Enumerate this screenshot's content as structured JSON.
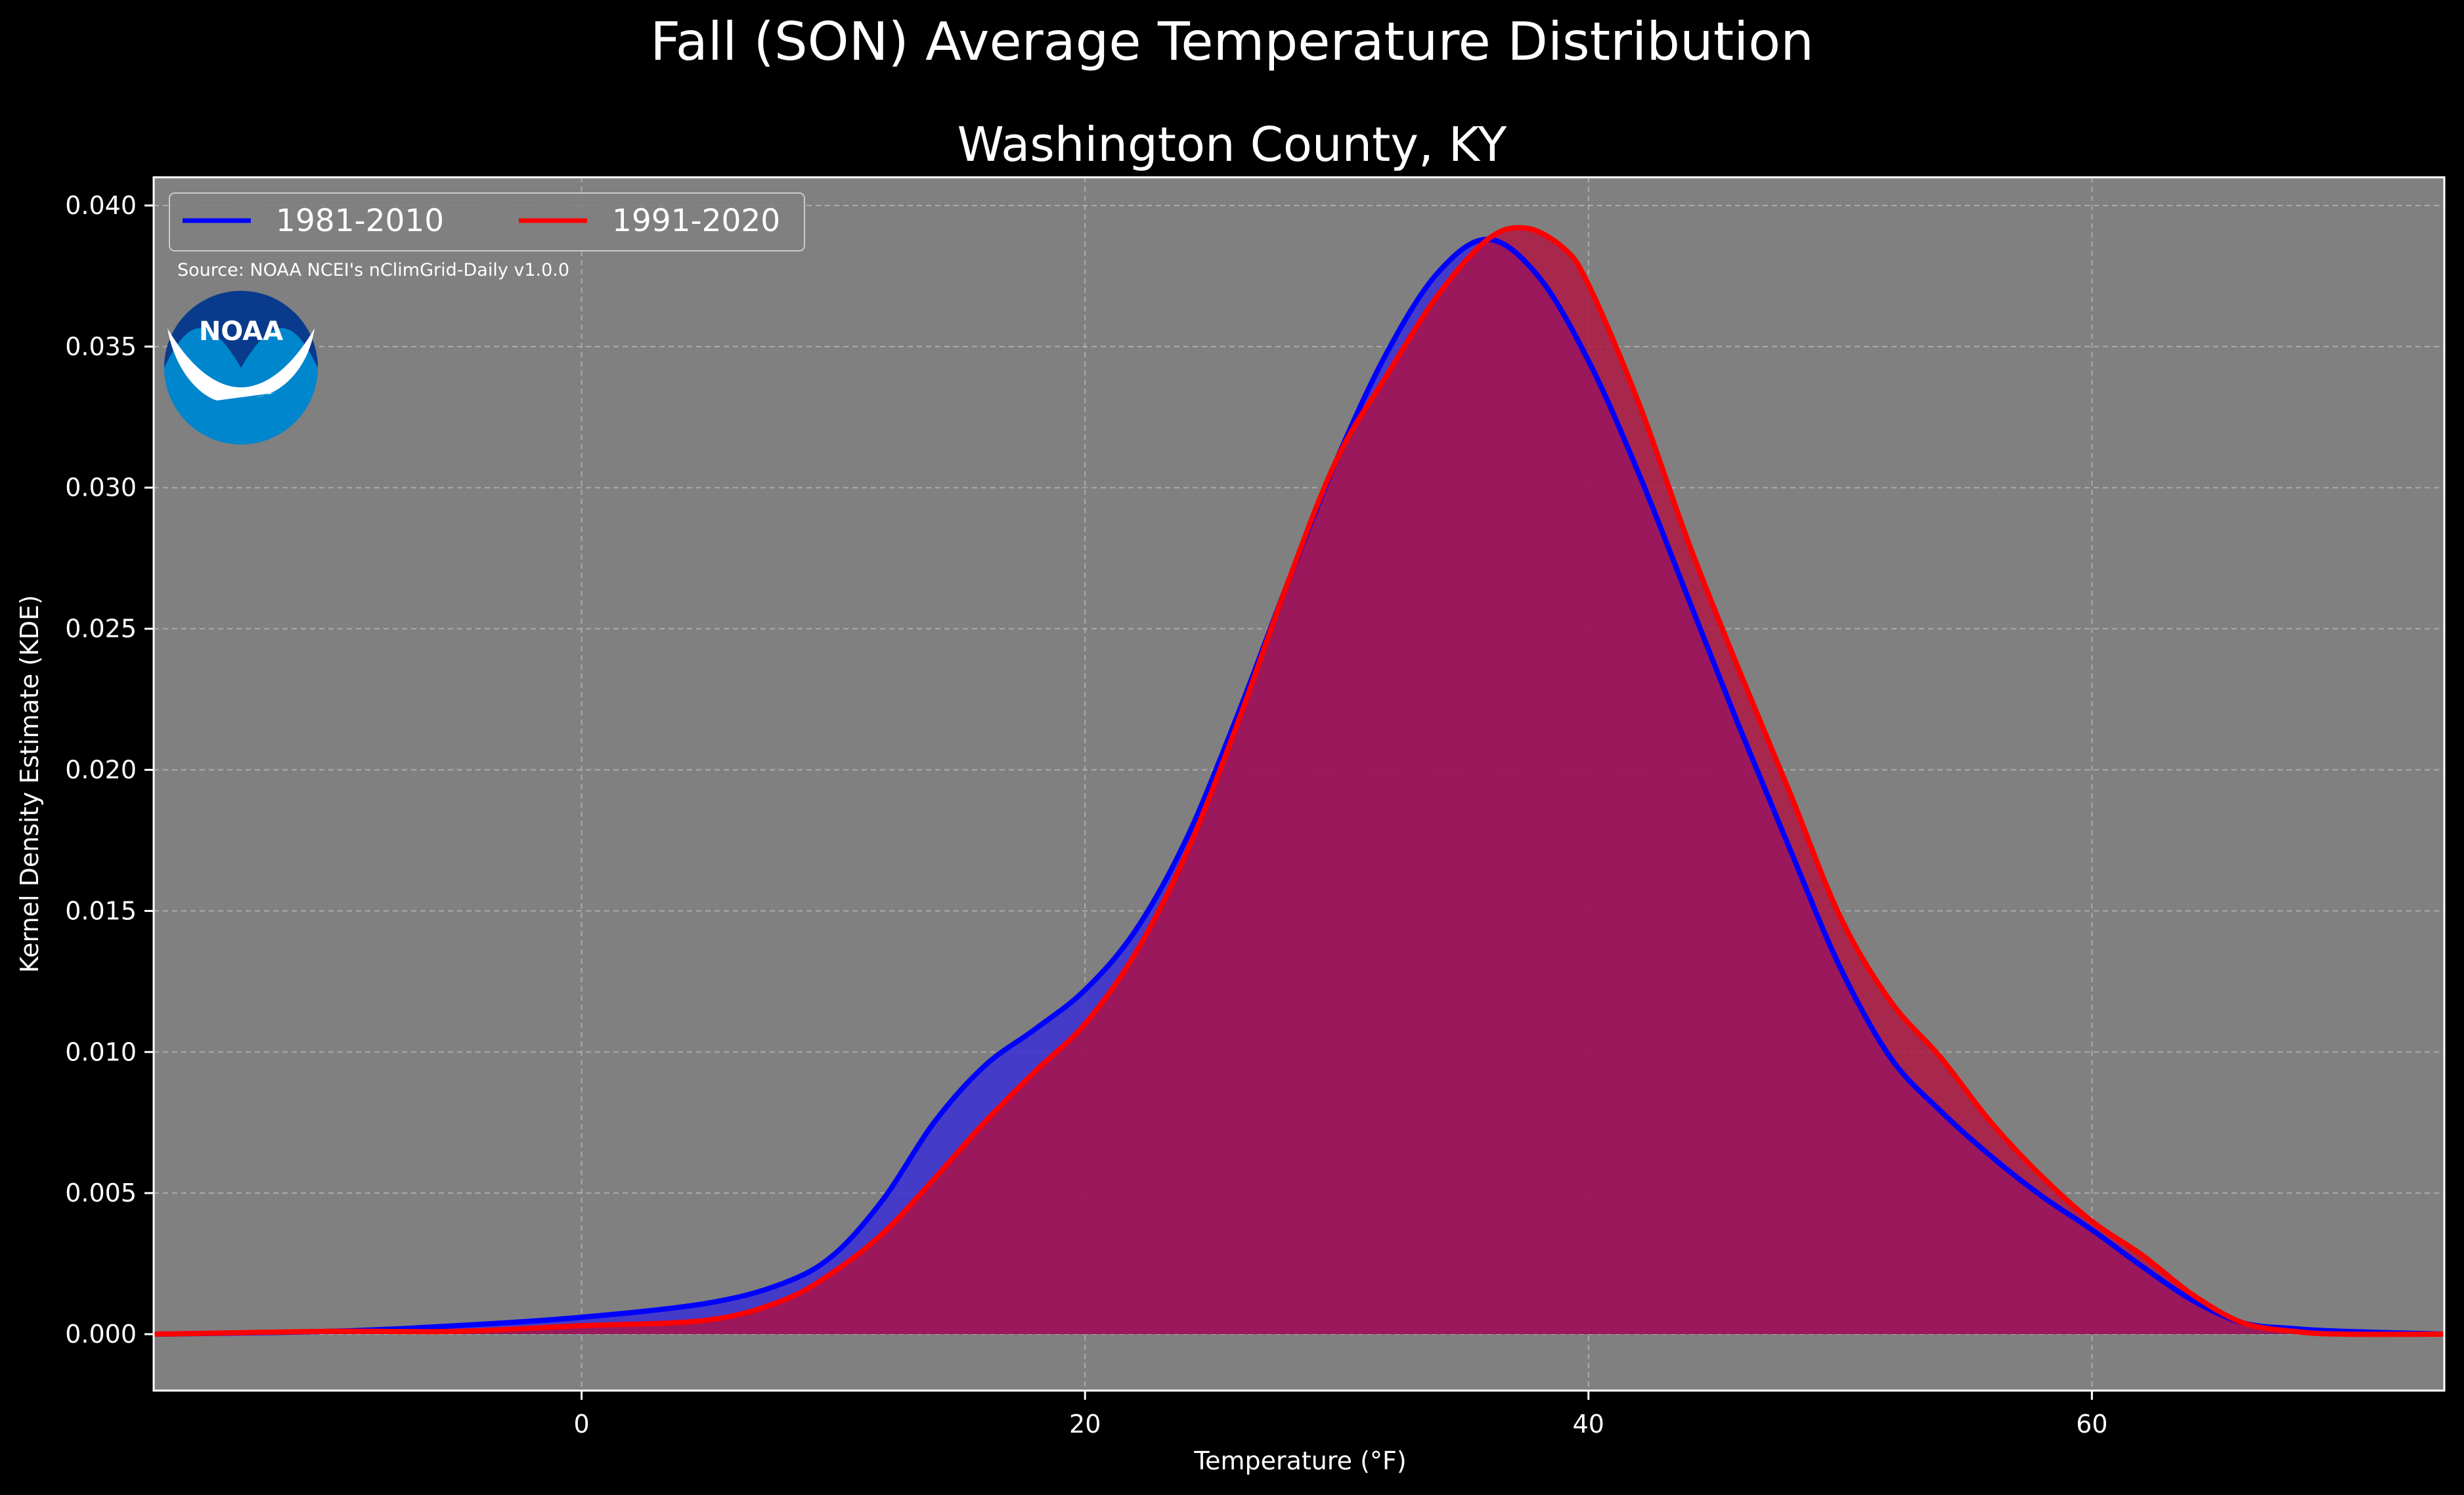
{
  "suptitle": "Fall (SON) Average Temperature Distribution",
  "subtitle": "Washington County, KY",
  "source": "Source: NOAA NCEI's nClimGrid-Daily v1.0.0",
  "logo_text": "NOAA",
  "colors": {
    "background": "#000000",
    "plot_bg": "#808080",
    "series1": "#0000ff",
    "series2": "#ff0000",
    "overlap": "#9b1d5c",
    "logo_dark": "#0a3a8c",
    "logo_light": "#0086cc"
  },
  "chart_data": {
    "type": "area",
    "title": "Washington County, KY",
    "xlabel": "Temperature ($^\\circ$F)",
    "ylabel": "Kernel Density Estimate (KDE)",
    "xlim": [
      -17,
      74
    ],
    "ylim": [
      -0.002,
      0.041
    ],
    "xticks": [
      0,
      20,
      40,
      60
    ],
    "yticks": [
      0.0,
      0.005,
      0.01,
      0.015,
      0.02,
      0.025,
      0.03,
      0.035,
      0.04
    ],
    "grid": true,
    "legend_position": "top-left",
    "series": [
      {
        "name": "1981-2010",
        "color": "#0000ff",
        "x": [
          -17,
          -10,
          -5,
          0,
          5,
          8,
          10,
          12,
          14,
          16,
          18,
          20,
          22,
          24,
          26,
          28,
          30,
          32,
          34,
          36,
          38,
          40,
          42,
          44,
          46,
          48,
          50,
          52,
          54,
          56,
          58,
          60,
          62,
          64,
          66,
          68,
          70,
          74
        ],
        "y": [
          0.0,
          0.0001,
          0.0003,
          0.0006,
          0.0011,
          0.0018,
          0.0028,
          0.0048,
          0.0075,
          0.0095,
          0.0108,
          0.0122,
          0.0143,
          0.0175,
          0.0218,
          0.0265,
          0.031,
          0.0348,
          0.0376,
          0.0388,
          0.0375,
          0.0345,
          0.0305,
          0.026,
          0.0215,
          0.0172,
          0.013,
          0.0098,
          0.0079,
          0.0063,
          0.0049,
          0.0037,
          0.0024,
          0.0012,
          0.0004,
          0.0002,
          0.0001,
          0.0
        ]
      },
      {
        "name": "1991-2020",
        "color": "#ff0000",
        "x": [
          -17,
          -10,
          -5,
          0,
          5,
          8,
          10,
          12,
          14,
          16,
          18,
          20,
          22,
          24,
          26,
          28,
          30,
          32,
          34,
          36,
          37.5,
          39,
          40,
          42,
          44,
          46,
          48,
          50,
          52,
          54,
          56,
          58,
          60,
          62,
          64,
          66,
          68,
          70,
          74
        ],
        "y": [
          0.0,
          0.0001,
          0.0001,
          0.0003,
          0.0005,
          0.0012,
          0.0022,
          0.0036,
          0.0055,
          0.0075,
          0.0093,
          0.011,
          0.0135,
          0.017,
          0.0215,
          0.0265,
          0.031,
          0.034,
          0.0368,
          0.0388,
          0.0392,
          0.0385,
          0.0372,
          0.033,
          0.028,
          0.0235,
          0.0192,
          0.0148,
          0.0118,
          0.0098,
          0.0075,
          0.0056,
          0.004,
          0.0028,
          0.0014,
          0.0004,
          0.0001,
          0.0,
          0.0
        ]
      }
    ]
  }
}
